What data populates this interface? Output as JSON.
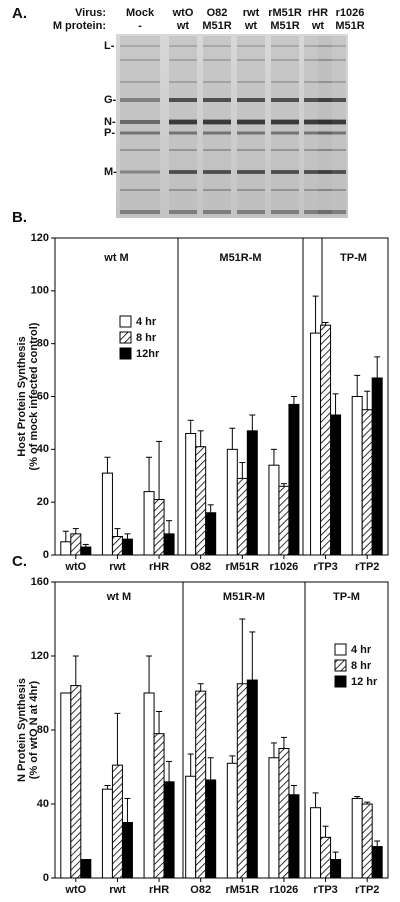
{
  "panel_a": {
    "label": "A.",
    "virus_label": "Virus:",
    "protein_label": "M protein:",
    "virus": [
      "Mock",
      "wtO",
      "O82",
      "rwt",
      "rM51R",
      "rHR",
      "r1026"
    ],
    "protein": [
      "-",
      "wt",
      "M51R",
      "wt",
      "M51R",
      "wt",
      "M51R"
    ],
    "markers": [
      "L-",
      "G-",
      "N-",
      "P-",
      "M-"
    ]
  },
  "chart_data": [
    {
      "type": "bar",
      "panel_label": "B.",
      "ylabel": [
        "Host Protein Synthesis",
        "(% of mock infected control)"
      ],
      "groups": [
        "wt M",
        "M51R-M",
        "TP-M"
      ],
      "categories": [
        "wtO",
        "rwt",
        "rHR",
        "O82",
        "rM51R",
        "r1026",
        "rTP3",
        "rTP2"
      ],
      "series": [
        {
          "name": "4 hr",
          "color": "#ffffff",
          "values": [
            5,
            31,
            24,
            46,
            40,
            34,
            84,
            60
          ],
          "errors": [
            4,
            6,
            13,
            5,
            8,
            6,
            14,
            8
          ]
        },
        {
          "name": "8 hr",
          "color": "#ffffff",
          "hatch": true,
          "values": [
            8,
            7,
            21,
            41,
            29,
            26,
            87,
            55
          ],
          "errors": [
            2,
            3,
            22,
            6,
            6,
            1,
            1,
            7
          ]
        },
        {
          "name": "12hr",
          "color": "#000000",
          "values": [
            3,
            6,
            8,
            16,
            47,
            57,
            53,
            67
          ],
          "errors": [
            1,
            2,
            5,
            3,
            6,
            3,
            8,
            8
          ]
        }
      ],
      "ylim": [
        0,
        120
      ],
      "yticks": [
        0,
        20,
        40,
        60,
        80,
        100,
        120
      ]
    },
    {
      "type": "bar",
      "panel_label": "C.",
      "ylabel": [
        "N Protein Synthesis",
        "(% of wtO N at 4hr)"
      ],
      "groups": [
        "wt M",
        "M51R-M",
        "TP-M"
      ],
      "categories": [
        "wtO",
        "rwt",
        "rHR",
        "O82",
        "rM51R",
        "r1026",
        "rTP3",
        "rTP2"
      ],
      "series": [
        {
          "name": "4 hr",
          "color": "#ffffff",
          "values": [
            100,
            48,
            100,
            55,
            62,
            65,
            38,
            43
          ],
          "errors": [
            0,
            2,
            20,
            12,
            4,
            8,
            8,
            1
          ]
        },
        {
          "name": "8 hr",
          "color": "#ffffff",
          "hatch": true,
          "values": [
            104,
            61,
            78,
            101,
            105,
            70,
            22,
            40
          ],
          "errors": [
            16,
            28,
            12,
            4,
            35,
            6,
            6,
            1
          ]
        },
        {
          "name": "12 hr",
          "color": "#000000",
          "values": [
            10,
            30,
            52,
            53,
            107,
            45,
            10,
            17
          ],
          "errors": [
            0,
            13,
            11,
            12,
            26,
            5,
            4,
            3
          ]
        }
      ],
      "ylim": [
        0,
        160
      ],
      "yticks": [
        0,
        40,
        80,
        120,
        160
      ]
    }
  ]
}
